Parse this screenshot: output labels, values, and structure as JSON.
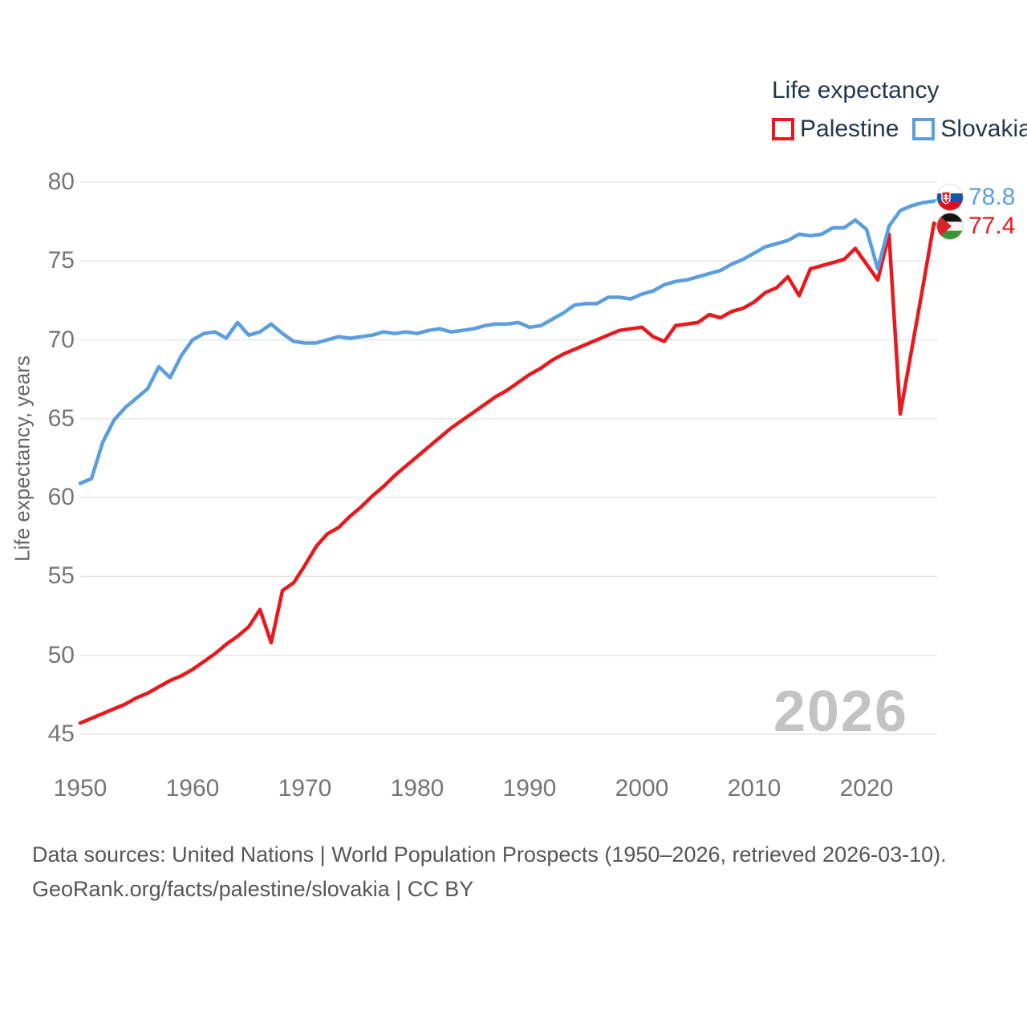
{
  "legend": {
    "title": "Life expectancy",
    "items": [
      {
        "label": "Palestine",
        "color": "#e8191d"
      },
      {
        "label": "Slovakia",
        "color": "#5b9ee0"
      }
    ]
  },
  "axes": {
    "y_title": "Life expectancy, years",
    "y_ticks": [
      80,
      75,
      70,
      65,
      60,
      55,
      50,
      45
    ],
    "x_ticks": [
      1950,
      1960,
      1970,
      1980,
      1990,
      2000,
      2010,
      2020
    ]
  },
  "end_labels": [
    {
      "series": "Slovakia",
      "value": "78.8",
      "color": "#5b9ee0"
    },
    {
      "series": "Palestine",
      "value": "77.4",
      "color": "#e8191d"
    }
  ],
  "watermark": "2026",
  "footer": {
    "line1": "Data sources: United Nations | World Population Prospects (1950–2026, retrieved 2026-03-10).",
    "line2": "GeoRank.org/facts/palestine/slovakia | CC BY"
  },
  "chart_data": {
    "type": "line",
    "title": "Life expectancy",
    "ylabel": "Life expectancy, years",
    "xlim": [
      1950,
      2026
    ],
    "ylim": [
      45,
      80
    ],
    "grid": "horizontal",
    "legend_position": "top-right",
    "x": [
      1950,
      1951,
      1952,
      1953,
      1954,
      1955,
      1956,
      1957,
      1958,
      1959,
      1960,
      1961,
      1962,
      1963,
      1964,
      1965,
      1966,
      1967,
      1968,
      1969,
      1970,
      1971,
      1972,
      1973,
      1974,
      1975,
      1976,
      1977,
      1978,
      1979,
      1980,
      1981,
      1982,
      1983,
      1984,
      1985,
      1986,
      1987,
      1988,
      1989,
      1990,
      1991,
      1992,
      1993,
      1994,
      1995,
      1996,
      1997,
      1998,
      1999,
      2000,
      2001,
      2002,
      2003,
      2004,
      2005,
      2006,
      2007,
      2008,
      2009,
      2010,
      2011,
      2012,
      2013,
      2014,
      2015,
      2016,
      2017,
      2018,
      2019,
      2020,
      2021,
      2022,
      2023,
      2024,
      2025,
      2026
    ],
    "series": [
      {
        "name": "Palestine",
        "color": "#e8191d",
        "end_value": 77.4,
        "values": [
          45.7,
          46.0,
          46.3,
          46.6,
          46.9,
          47.3,
          47.6,
          48.0,
          48.4,
          48.7,
          49.1,
          49.6,
          50.1,
          50.7,
          51.2,
          51.8,
          52.9,
          50.8,
          54.1,
          54.6,
          55.7,
          56.9,
          57.7,
          58.1,
          58.8,
          59.4,
          60.1,
          60.7,
          61.4,
          62.0,
          62.6,
          63.2,
          63.8,
          64.4,
          64.9,
          65.4,
          65.9,
          66.4,
          66.8,
          67.3,
          67.8,
          68.2,
          68.7,
          69.1,
          69.4,
          69.7,
          70.0,
          70.3,
          70.6,
          70.7,
          70.8,
          70.2,
          69.9,
          70.9,
          71.0,
          71.1,
          71.6,
          71.4,
          71.8,
          72.0,
          72.4,
          73.0,
          73.3,
          74.0,
          72.8,
          74.5,
          74.7,
          74.9,
          75.1,
          75.8,
          74.8,
          73.8,
          76.7,
          65.3,
          69.3,
          73.3,
          77.4
        ]
      },
      {
        "name": "Slovakia",
        "color": "#5b9ee0",
        "end_value": 78.8,
        "values": [
          60.9,
          61.2,
          63.5,
          64.9,
          65.7,
          66.3,
          66.9,
          68.3,
          67.6,
          69.0,
          70.0,
          70.4,
          70.5,
          70.1,
          71.1,
          70.3,
          70.5,
          71.0,
          70.4,
          69.9,
          69.8,
          69.8,
          70.0,
          70.2,
          70.1,
          70.2,
          70.3,
          70.5,
          70.4,
          70.5,
          70.4,
          70.6,
          70.7,
          70.5,
          70.6,
          70.7,
          70.9,
          71.0,
          71.0,
          71.1,
          70.8,
          70.9,
          71.3,
          71.7,
          72.2,
          72.3,
          72.3,
          72.7,
          72.7,
          72.6,
          72.9,
          73.1,
          73.5,
          73.7,
          73.8,
          74.0,
          74.2,
          74.4,
          74.8,
          75.1,
          75.5,
          75.9,
          76.1,
          76.3,
          76.7,
          76.6,
          76.7,
          77.1,
          77.1,
          77.6,
          77.0,
          74.5,
          77.2,
          78.2,
          78.5,
          78.7,
          78.8
        ]
      }
    ]
  }
}
